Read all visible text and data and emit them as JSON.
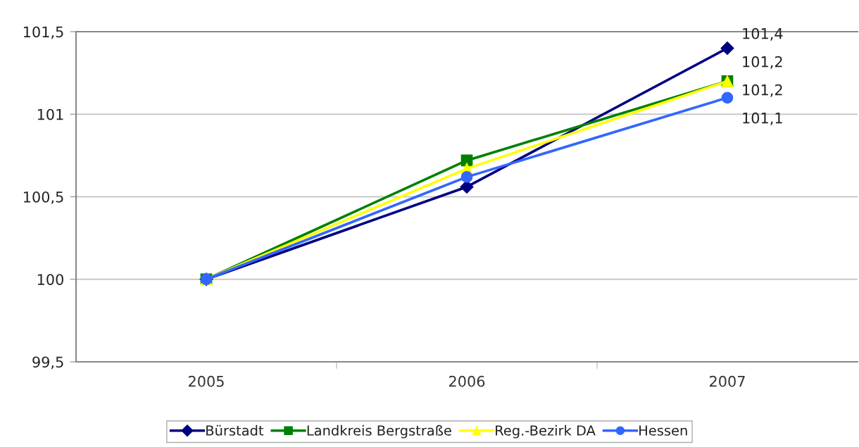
{
  "chart_data": {
    "type": "line",
    "categories": [
      "2005",
      "2006",
      "2007"
    ],
    "series": [
      {
        "name": "Bürstadt",
        "color": "#000080",
        "marker": "diamond",
        "values": [
          100,
          100.56,
          101.4
        ],
        "value_labels": [
          null,
          null,
          "101,4"
        ]
      },
      {
        "name": "Landkreis Bergstraße",
        "color": "#008000",
        "marker": "square",
        "values": [
          100,
          100.72,
          101.2
        ],
        "value_labels": [
          null,
          null,
          "101,2"
        ]
      },
      {
        "name": "Reg.-Bezirk DA",
        "color": "#ffff00",
        "marker": "triangle",
        "values": [
          100,
          100.67,
          101.2
        ],
        "value_labels": [
          null,
          null,
          "101,2"
        ]
      },
      {
        "name": "Hessen",
        "color": "#3366ff",
        "marker": "circle",
        "values": [
          100,
          100.62,
          101.1
        ],
        "value_labels": [
          null,
          null,
          "101,1"
        ]
      }
    ],
    "ylim": [
      99.5,
      101.5
    ],
    "yticks": [
      {
        "value": 99.5,
        "label": "99,5"
      },
      100,
      {
        "value": 100.5,
        "label": "100,5"
      },
      101,
      {
        "value": 101.5,
        "label": "101,5"
      }
    ],
    "grid": "y",
    "legend": "bottom",
    "line_style": "solid"
  }
}
